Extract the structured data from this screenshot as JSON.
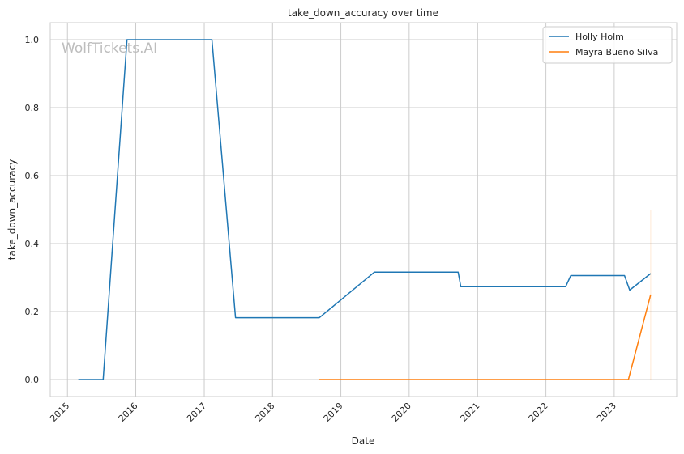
{
  "chart_data": {
    "type": "line",
    "title": "take_down_accuracy over time",
    "xlabel": "Date",
    "ylabel": "take_down_accuracy",
    "watermark": "WolfTickets.AI",
    "x_ticks": [
      "2015",
      "2016",
      "2017",
      "2018",
      "2019",
      "2020",
      "2021",
      "2022",
      "2023"
    ],
    "y_ticks": [
      "0.0",
      "0.2",
      "0.4",
      "0.6",
      "0.8",
      "1.0"
    ],
    "xlim": [
      "2014-10-01",
      "2023-12-01"
    ],
    "ylim": [
      -0.05,
      1.05
    ],
    "grid": true,
    "legend_position": "top-right",
    "series": [
      {
        "name": "Holly Holm",
        "color": "#1f77b4",
        "points": [
          {
            "x": "2015-02-28",
            "y": 0.0
          },
          {
            "x": "2015-07-11",
            "y": 0.0
          },
          {
            "x": "2015-11-15",
            "y": 1.0
          },
          {
            "x": "2017-02-11",
            "y": 1.0
          },
          {
            "x": "2017-06-17",
            "y": 0.182
          },
          {
            "x": "2018-09-08",
            "y": 0.182
          },
          {
            "x": "2019-06-29",
            "y": 0.316
          },
          {
            "x": "2020-09-19",
            "y": 0.316
          },
          {
            "x": "2020-10-03",
            "y": 0.273
          },
          {
            "x": "2022-04-16",
            "y": 0.273
          },
          {
            "x": "2022-05-14",
            "y": 0.306
          },
          {
            "x": "2023-02-25",
            "y": 0.306
          },
          {
            "x": "2023-03-25",
            "y": 0.263
          },
          {
            "x": "2023-07-15",
            "y": 0.312
          }
        ]
      },
      {
        "name": "Mayra Bueno Silva",
        "color": "#ff7f0e",
        "points": [
          {
            "x": "2018-09-08",
            "y": 0.0
          },
          {
            "x": "2023-03-18",
            "y": 0.0
          },
          {
            "x": "2023-07-15",
            "y": 0.25
          }
        ]
      }
    ]
  }
}
